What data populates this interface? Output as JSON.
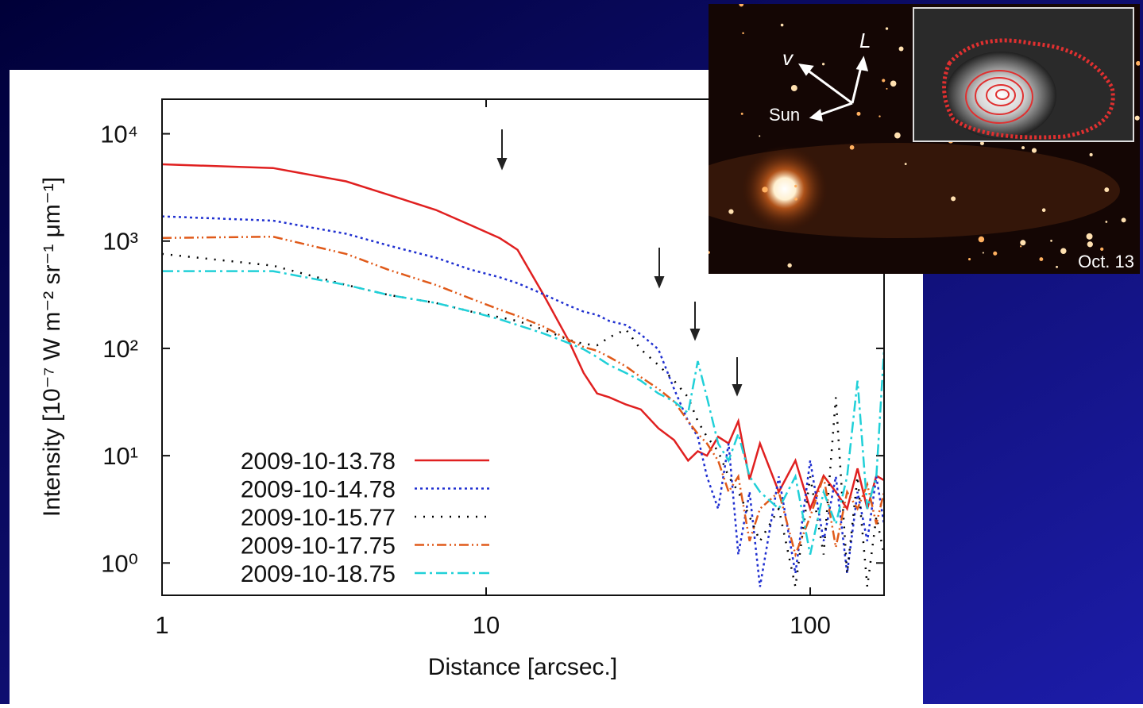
{
  "chart_data": {
    "type": "line",
    "x_label": "Distance [arcsec.]",
    "y_label": "Intensity [10⁻⁷ W m⁻² sr⁻¹ μm⁻¹]",
    "log_x": true,
    "log_y": true,
    "xlim": [
      1,
      169
    ],
    "xticks": [
      1,
      10,
      100
    ],
    "ylim": [
      0.5,
      21000
    ],
    "yticks": [
      {
        "value": 1,
        "label": "10⁰"
      },
      {
        "value": 10,
        "label": "10¹"
      },
      {
        "value": 100,
        "label": "10²"
      },
      {
        "value": 1000,
        "label": "10³"
      },
      {
        "value": 10000,
        "label": "10⁴"
      }
    ],
    "legend": "lower left",
    "x": [
      1,
      2.2,
      3.7,
      5,
      7,
      9,
      11,
      12.5,
      15,
      18,
      20,
      22,
      24,
      27,
      30,
      34,
      38,
      42,
      45,
      48,
      52,
      56,
      60,
      65,
      70,
      80,
      90,
      100,
      110,
      120,
      130,
      140,
      150,
      160,
      169
    ],
    "series": [
      {
        "name": "2009-10-13.78",
        "color": "#e02020",
        "style": "solid",
        "values": [
          5200,
          4800,
          3600,
          2700,
          1950,
          1400,
          1070,
          830,
          320,
          117,
          59,
          38,
          35,
          30,
          27,
          18,
          14,
          9,
          11,
          10,
          15,
          13,
          21,
          6,
          13,
          4.6,
          9,
          3.2,
          6.5,
          4.6,
          3.2,
          7.6,
          3.2,
          6.5,
          5.9
        ]
      },
      {
        "name": "2009-10-14.78",
        "color": "#2030d0",
        "style": "dotted",
        "values": [
          1700,
          1550,
          1170,
          910,
          700,
          540,
          460,
          405,
          320,
          250,
          220,
          205,
          180,
          165,
          135,
          98,
          42,
          21,
          15,
          6.4,
          3.2,
          13,
          1.2,
          4.6,
          0.6,
          6.4,
          0.8,
          9,
          1.6,
          6.4,
          0.8,
          4.6,
          1.6,
          6.4,
          2.3
        ]
      },
      {
        "name": "2009-10-15.77",
        "color": "#000000",
        "style": "sparse",
        "values": [
          760,
          590,
          390,
          315,
          265,
          220,
          195,
          180,
          150,
          120,
          110,
          107,
          127,
          150,
          98,
          70,
          50,
          35,
          21,
          15,
          11,
          6.4,
          4.6,
          2.7,
          1.6,
          3.2,
          0.6,
          6.4,
          1.2,
          35,
          0.8,
          6.4,
          0.6,
          2.7,
          1.2
        ]
      },
      {
        "name": "2009-10-17.75",
        "color": "#e05a1a",
        "style": "dashdotdot",
        "values": [
          1070,
          1100,
          760,
          540,
          390,
          290,
          230,
          200,
          160,
          120,
          103,
          95,
          83,
          68,
          54,
          42,
          32,
          21,
          16,
          13,
          9,
          4.6,
          6.4,
          1.6,
          3.2,
          4.6,
          1.2,
          2.7,
          6.4,
          1.4,
          4.6,
          3.2,
          5.4,
          2.3,
          4.6
        ]
      },
      {
        "name": "2009-10-18.75",
        "color": "#20d0d8",
        "style": "dashdot",
        "values": [
          525,
          525,
          390,
          315,
          265,
          220,
          187,
          165,
          138,
          112,
          98,
          83,
          70,
          59,
          50,
          38,
          32,
          25,
          76,
          35,
          13,
          9,
          16,
          6.4,
          4.6,
          3.2,
          6.4,
          1.2,
          4.6,
          2.3,
          6.4,
          50,
          3.2,
          6.4,
          98
        ]
      }
    ]
  },
  "inset": {
    "direction_labels": [
      "v",
      "L",
      "Sun"
    ],
    "date": "Oct. 13"
  }
}
